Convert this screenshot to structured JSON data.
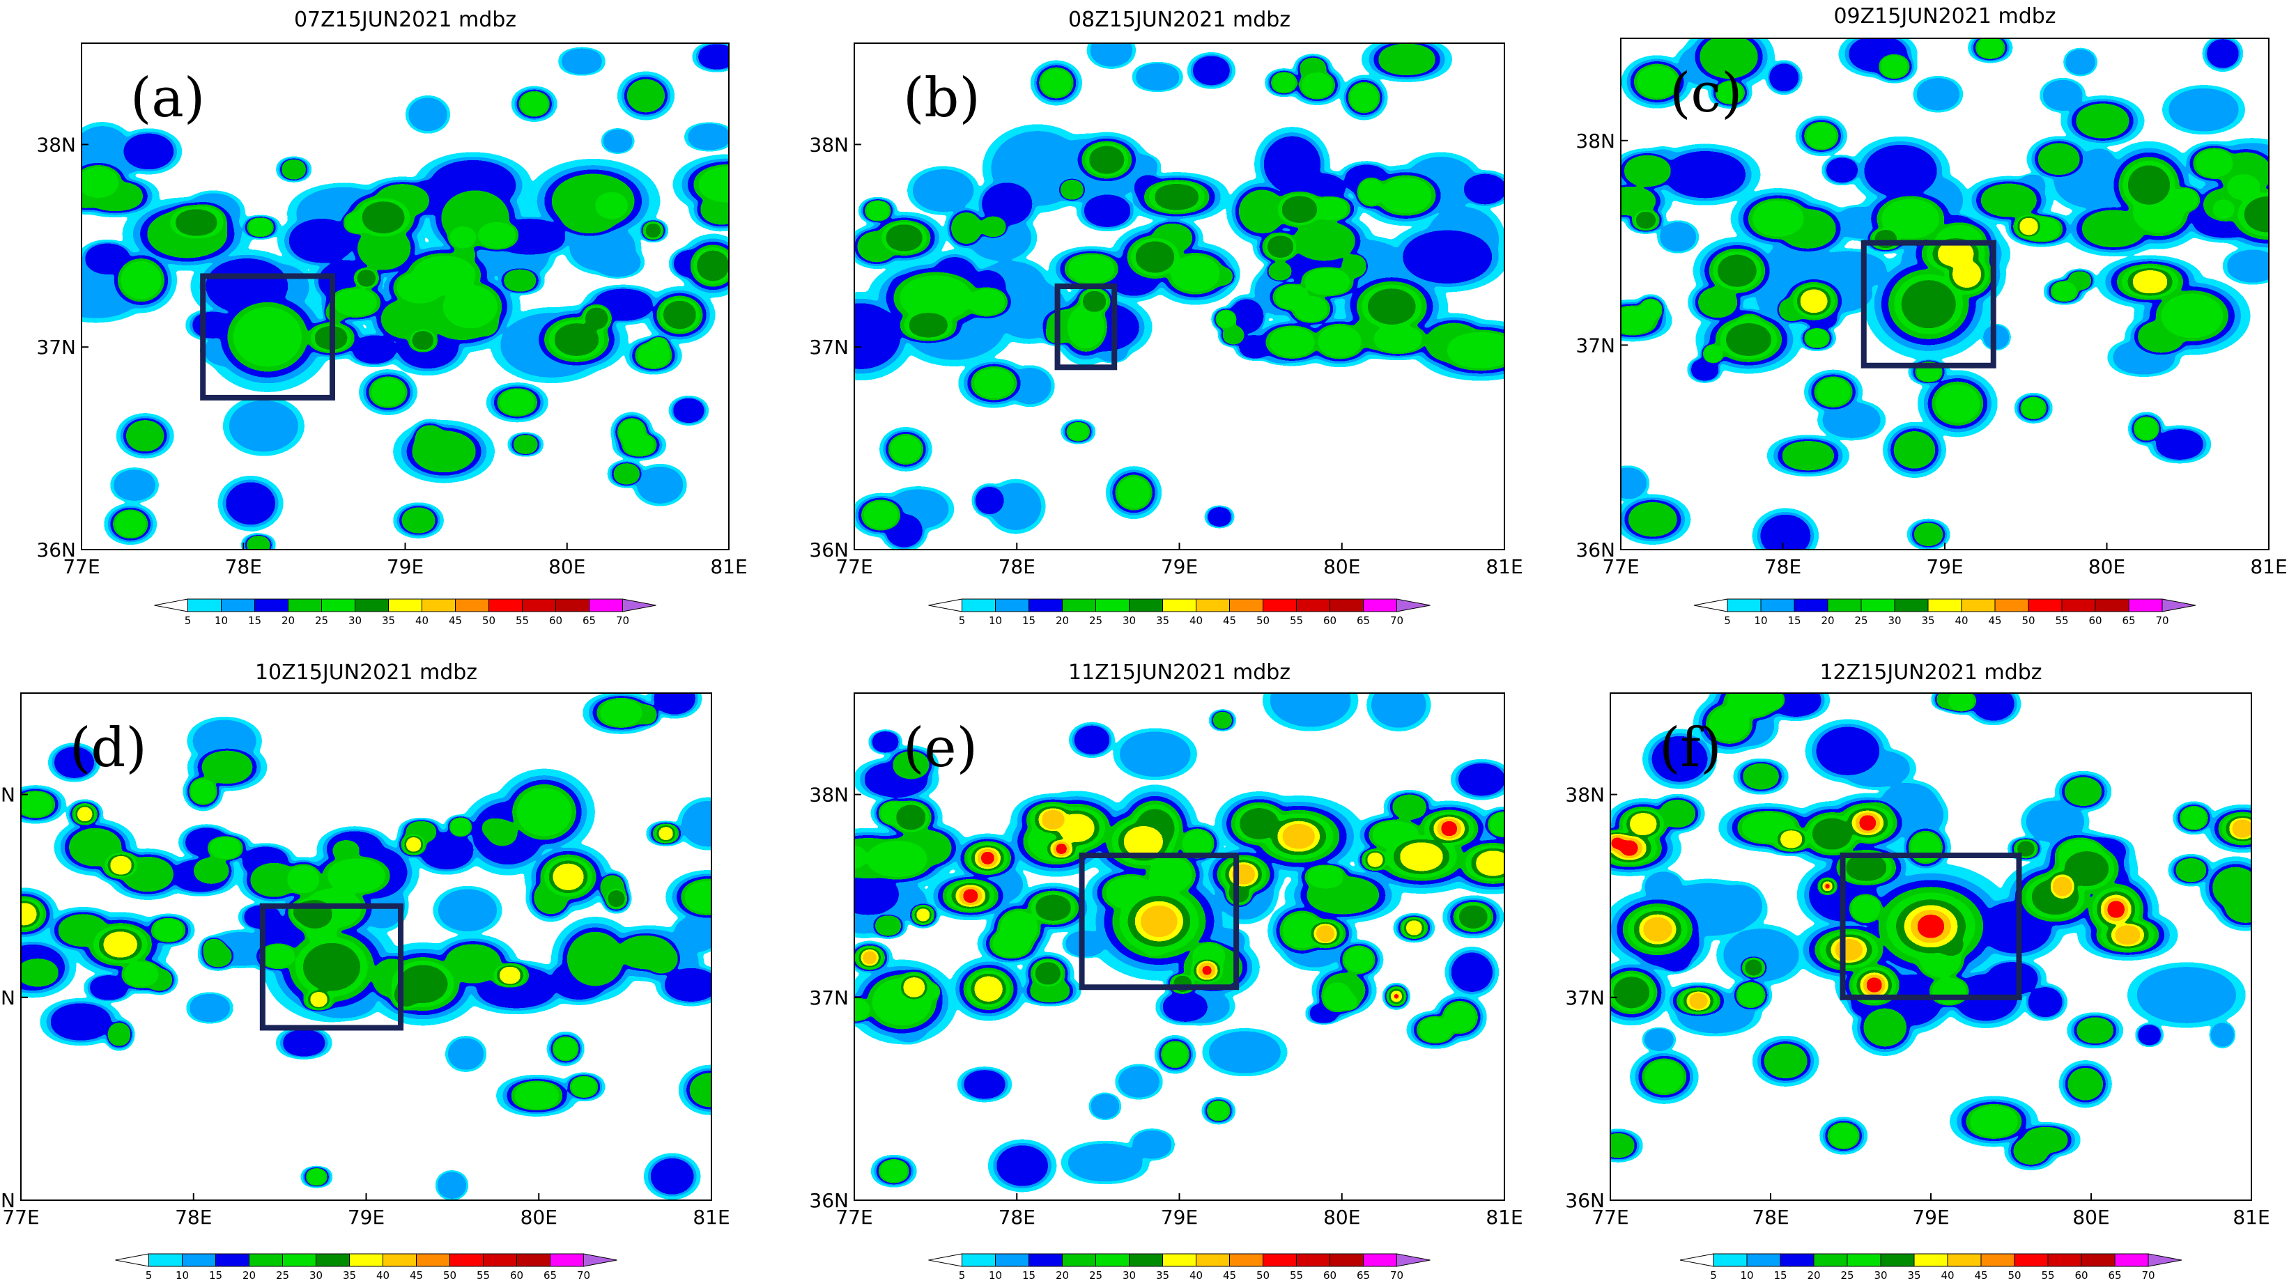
{
  "figure": {
    "variable": "mdbz",
    "colors": {
      "box": "#1a2356",
      "frame": "#000000"
    },
    "x_ticks": [
      "77E",
      "78E",
      "79E",
      "80E",
      "81E"
    ],
    "y_ticks": [
      "36N",
      "37N",
      "38N"
    ],
    "lon_range": [
      77,
      81
    ],
    "lat_range": [
      36,
      38.5
    ]
  },
  "colorbar": {
    "labels": [
      "5",
      "10",
      "15",
      "20",
      "25",
      "30",
      "35",
      "40",
      "45",
      "50",
      "55",
      "60",
      "65",
      "70"
    ],
    "colors": [
      "#ffffff",
      "#00e5ff",
      "#00a0ff",
      "#0000f0",
      "#00c800",
      "#00e000",
      "#008c00",
      "#ffff00",
      "#ffc800",
      "#ff8c00",
      "#ff0000",
      "#d40000",
      "#bb0000",
      "#ff00ff",
      "#b060e0"
    ]
  },
  "panels": [
    {
      "label": "(a)",
      "title": "07Z15JUN2021  mdbz",
      "box": {
        "lon": [
          77.75,
          78.55
        ],
        "lat": [
          36.75,
          37.35
        ]
      }
    },
    {
      "label": "(b)",
      "title": "08Z15JUN2021  mdbz",
      "box": {
        "lon": [
          78.25,
          78.6
        ],
        "lat": [
          36.9,
          37.3
        ]
      }
    },
    {
      "label": "(c)",
      "title": "09Z15JUN2021  mdbz",
      "box": {
        "lon": [
          78.5,
          79.3
        ],
        "lat": [
          36.9,
          37.5
        ]
      }
    },
    {
      "label": "(d)",
      "title": "10Z15JUN2021  mdbz",
      "box": {
        "lon": [
          78.4,
          79.2
        ],
        "lat": [
          36.85,
          37.45
        ]
      }
    },
    {
      "label": "(e)",
      "title": "11Z15JUN2021  mdbz",
      "box": {
        "lon": [
          78.4,
          79.35
        ],
        "lat": [
          37.05,
          37.7
        ]
      }
    },
    {
      "label": "(f)",
      "title": "12Z15JUN2021  mdbz",
      "box": {
        "lon": [
          78.45,
          79.55
        ],
        "lat": [
          37.0,
          37.7
        ]
      }
    }
  ]
}
